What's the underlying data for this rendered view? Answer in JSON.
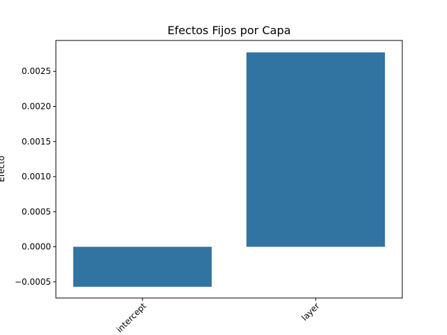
{
  "chart_data": {
    "type": "bar",
    "title": "Efectos Fijos por Capa",
    "xlabel": "",
    "ylabel": "Efecto",
    "categories": [
      "intercept",
      "layer"
    ],
    "values": [
      -0.00057,
      0.00277
    ],
    "ylim": [
      -0.00073,
      0.00294
    ],
    "yticks": [
      -0.0005,
      0.0,
      0.0005,
      0.001,
      0.0015,
      0.002,
      0.0025
    ],
    "ytick_labels": [
      "−0.0005",
      "0.0000",
      "0.0005",
      "0.0010",
      "0.0015",
      "0.0020",
      "0.0025"
    ],
    "xtick_rotation": 45,
    "grid": false,
    "bar_color": "#3274a1"
  }
}
